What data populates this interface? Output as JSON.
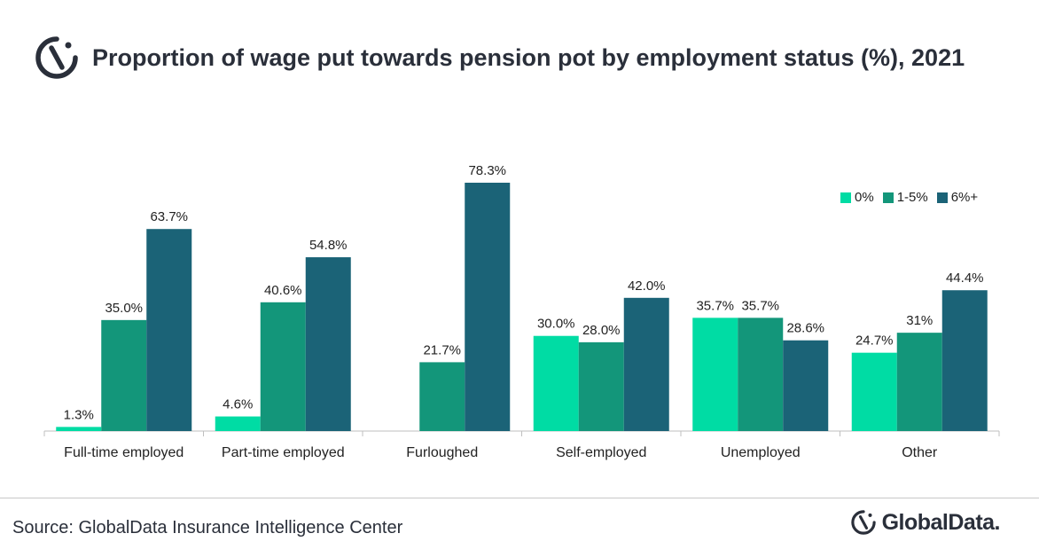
{
  "title": "Proportion of wage put towards pension pot by employment status (%), 2021",
  "source": "Source: GlobalData Insurance Intelligence Center",
  "logo_text": "GlobalData.",
  "colors": {
    "zero": "#00DCA4",
    "one_to_five": "#13967A",
    "six_plus": "#1B6377",
    "axis": "#bfbfbf",
    "text": "#2a2f3a"
  },
  "chart_data": {
    "type": "bar",
    "title": "Proportion of wage put towards pension pot by employment status (%), 2021",
    "categories": [
      "Full-time employed",
      "Part-time employed",
      "Furloughed",
      "Self-employed",
      "Unemployed",
      "Other"
    ],
    "series": [
      {
        "name": "0%",
        "values": [
          1.3,
          4.6,
          null,
          30.0,
          35.7,
          24.7
        ],
        "labels": [
          "1.3%",
          "4.6%",
          "",
          "30.0%",
          "35.7%",
          "24.7%"
        ]
      },
      {
        "name": "1-5%",
        "values": [
          35.0,
          40.6,
          21.7,
          28.0,
          35.7,
          31.0
        ],
        "labels": [
          "35.0%",
          "40.6%",
          "21.7%",
          "28.0%",
          "35.7%",
          "31%"
        ]
      },
      {
        "name": "6%+",
        "values": [
          63.7,
          54.8,
          78.3,
          42.0,
          28.6,
          44.4
        ],
        "labels": [
          "63.7%",
          "54.8%",
          "78.3%",
          "42.0%",
          "28.6%",
          "44.4%"
        ]
      }
    ],
    "ylim": [
      0,
      80
    ],
    "xlabel": "",
    "ylabel": "",
    "legend_position": "top-right",
    "grid": false
  }
}
